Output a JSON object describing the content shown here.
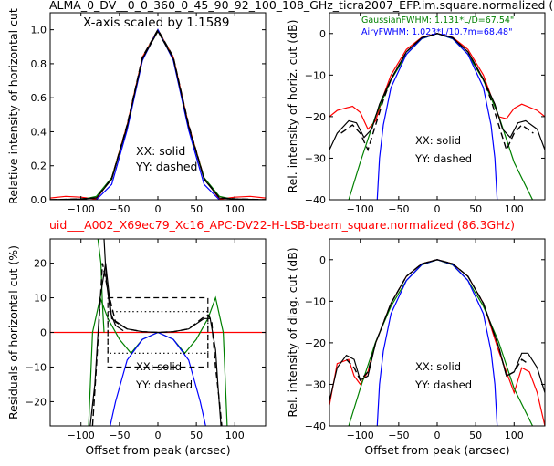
{
  "top_title": "ALMA_0_DV__0_0_360_0_45_90_92_100_108_GHz_ticra2007_EFP.im.square.normalized (",
  "mid_title": "uid___A002_X69ec79_Xc16_APC-DV22-H-LSB-beam_square.normalized (86.3GHz)",
  "colors": {
    "red": "#ff0000",
    "green": "#008000",
    "blue": "#0000ff",
    "black": "#000000"
  },
  "chart_data": [
    {
      "type": "line",
      "panel": "top-left",
      "xlim": [
        -140,
        140
      ],
      "ylim": [
        0,
        1.1
      ],
      "xticks": [
        -100,
        -50,
        0,
        50,
        100
      ],
      "yticks": [
        0.0,
        0.2,
        0.4,
        0.6,
        0.8,
        1.0
      ],
      "ytick_labels": [
        "0.0",
        "0.2",
        "0.4",
        "0.6",
        "0.8",
        "1.0"
      ],
      "xlabel": "",
      "ylabel": "Relative intensity of horizontal cut",
      "annotations": [
        "X-axis scaled by 1.1589",
        "XX: solid",
        "YY: dashed"
      ],
      "series": [
        {
          "color": "red",
          "style": "solid",
          "x": [
            -140,
            -120,
            -100,
            -80,
            -60,
            -40,
            -20,
            0,
            20,
            40,
            60,
            80,
            100,
            120,
            140
          ],
          "y": [
            0.01,
            0.02,
            0.015,
            0.004,
            0.13,
            0.44,
            0.84,
            1.0,
            0.84,
            0.44,
            0.13,
            0.004,
            0.015,
            0.02,
            0.01
          ]
        },
        {
          "color": "green",
          "style": "solid",
          "x": [
            -140,
            -100,
            -80,
            -60,
            -40,
            -20,
            0,
            20,
            40,
            60,
            80,
            100,
            140
          ],
          "y": [
            0.0,
            0.0,
            0.02,
            0.13,
            0.43,
            0.83,
            1.0,
            0.83,
            0.43,
            0.13,
            0.02,
            0.0,
            0.0
          ]
        },
        {
          "color": "blue",
          "style": "solid",
          "x": [
            -80,
            -60,
            -40,
            -20,
            0,
            20,
            40,
            60,
            80
          ],
          "y": [
            0.0,
            0.09,
            0.41,
            0.82,
            1.0,
            0.82,
            0.41,
            0.09,
            0.0
          ]
        },
        {
          "color": "black",
          "style": "solid",
          "x": [
            -140,
            -100,
            -80,
            -60,
            -40,
            -20,
            0,
            20,
            40,
            60,
            80,
            100,
            140
          ],
          "y": [
            0.0,
            0.005,
            0.01,
            0.12,
            0.43,
            0.83,
            0.99,
            0.83,
            0.43,
            0.12,
            0.01,
            0.005,
            0.0
          ]
        },
        {
          "color": "black",
          "style": "dashed",
          "x": [
            -140,
            -100,
            -80,
            -60,
            -40,
            -20,
            0,
            20,
            40,
            60,
            80,
            100,
            140
          ],
          "y": [
            0.0,
            0.005,
            0.012,
            0.125,
            0.44,
            0.84,
            1.0,
            0.84,
            0.44,
            0.125,
            0.012,
            0.005,
            0.0
          ]
        }
      ]
    },
    {
      "type": "line",
      "panel": "top-right",
      "xlim": [
        -140,
        140
      ],
      "ylim": [
        -40,
        5
      ],
      "xticks": [
        -100,
        -50,
        0,
        50,
        100
      ],
      "yticks": [
        -40,
        -30,
        -20,
        -10,
        0
      ],
      "ytick_labels": [
        "−40",
        "−30",
        "−20",
        "−10",
        "0"
      ],
      "xlabel": "",
      "ylabel": "Rel. intensity of horiz. cut (dB)",
      "annotations": [
        "XX: solid",
        "YY: dashed"
      ],
      "legend": [
        {
          "text": "GaussianFWHM: 1.131*L/D=67.54\"",
          "color": "green"
        },
        {
          "text": "AiryFWHM: 1.023*L/10.7m=68.48\"",
          "color": "blue"
        }
      ],
      "series": [
        {
          "color": "red",
          "style": "solid",
          "x": [
            -140,
            -130,
            -110,
            -100,
            -90,
            -80,
            -70,
            -60,
            -40,
            -20,
            0,
            20,
            40,
            60,
            70,
            80,
            90,
            100,
            110,
            130,
            140
          ],
          "y": [
            -20,
            -18.5,
            -17.5,
            -19,
            -23,
            -21,
            -15,
            -10,
            -3.8,
            -0.9,
            0,
            -0.9,
            -3.8,
            -10,
            -15,
            -20,
            -20.5,
            -18,
            -17,
            -18.5,
            -20
          ]
        },
        {
          "color": "green",
          "style": "solid",
          "x": [
            -115,
            -100,
            -80,
            -60,
            -40,
            -20,
            0,
            20,
            40,
            60,
            80,
            100,
            124
          ],
          "y": [
            -40,
            -31,
            -19.8,
            -11.2,
            -5,
            -1.25,
            0,
            -1.25,
            -5,
            -11.2,
            -19.8,
            -31,
            -40
          ]
        },
        {
          "color": "blue",
          "style": "solid",
          "x": [
            -78,
            -75,
            -70,
            -60,
            -40,
            -20,
            0,
            20,
            40,
            60,
            70,
            75,
            78
          ],
          "y": [
            -40,
            -30,
            -22,
            -13,
            -5,
            -1.2,
            0,
            -1.2,
            -5,
            -13,
            -22,
            -30,
            -40
          ]
        },
        {
          "color": "black",
          "style": "solid",
          "x": [
            -140,
            -130,
            -115,
            -105,
            -95,
            -85,
            -75,
            -60,
            -40,
            -20,
            0,
            20,
            40,
            60,
            75,
            85,
            95,
            105,
            115,
            130,
            140
          ],
          "y": [
            -28,
            -24,
            -21,
            -21.5,
            -25,
            -23,
            -17,
            -11,
            -4.4,
            -1,
            0,
            -1,
            -4.4,
            -11,
            -17,
            -23,
            -25,
            -21.5,
            -21,
            -23,
            -28
          ]
        },
        {
          "color": "black",
          "style": "dashed",
          "x": [
            -125,
            -110,
            -100,
            -90,
            -80,
            -70,
            -60,
            -40,
            -20,
            0,
            20,
            40,
            60,
            70,
            80,
            90,
            100,
            110,
            125
          ],
          "y": [
            -24,
            -22,
            -24,
            -28,
            -22,
            -16,
            -11,
            -4.4,
            -1,
            0,
            -1,
            -4.4,
            -11,
            -16,
            -22,
            -28,
            -24,
            -22,
            -24
          ]
        }
      ]
    },
    {
      "type": "line",
      "panel": "bottom-left",
      "xlim": [
        -140,
        140
      ],
      "ylim": [
        -27,
        27
      ],
      "xticks": [
        -100,
        -50,
        0,
        50,
        100
      ],
      "yticks": [
        -20,
        -10,
        0,
        10,
        20
      ],
      "ytick_labels": [
        "−20",
        "−10",
        "0",
        "10",
        "20"
      ],
      "xlabel": "Offset from peak (arcsec)",
      "ylabel": "Residuals of horizontal cut (%)",
      "annotations": [
        "XX: solid",
        "YY: dashed"
      ],
      "series": [
        {
          "color": "red",
          "style": "solid",
          "x": [
            -140,
            140
          ],
          "y": [
            0,
            0
          ]
        },
        {
          "color": "green",
          "style": "solid",
          "x": [
            -90,
            -85,
            -75,
            -65,
            -50,
            -35,
            -20,
            0,
            20,
            35,
            50,
            65,
            75,
            85,
            90
          ],
          "y": [
            -27,
            0,
            10,
            4,
            -2,
            -6,
            -2,
            0,
            -2,
            -6,
            -2,
            4,
            10,
            0,
            -27
          ]
        },
        {
          "color": "green",
          "style": "solid",
          "x": [
            -70,
            -72,
            -74,
            -78
          ],
          "y": [
            0,
            8,
            20,
            27
          ]
        },
        {
          "color": "blue",
          "style": "solid",
          "x": [
            -62,
            -55,
            -40,
            -20,
            0,
            20,
            40,
            55,
            62
          ],
          "y": [
            -27,
            -20,
            -8,
            -2,
            0,
            -2,
            -8,
            -20,
            -27
          ]
        },
        {
          "color": "black",
          "style": "solid",
          "x": [
            -88,
            -82,
            -75,
            -68,
            -60,
            -40,
            -20,
            0,
            20,
            40,
            60,
            68,
            75,
            78,
            82
          ],
          "y": [
            -27,
            -15,
            10,
            20,
            4,
            1,
            0.2,
            0,
            0.2,
            1,
            4,
            4,
            -5,
            -15,
            -27
          ]
        },
        {
          "color": "black",
          "style": "solid",
          "x": [
            -70,
            -67,
            -62,
            -55,
            -45
          ],
          "y": [
            27,
            15,
            6,
            2,
            0.5
          ]
        },
        {
          "color": "black",
          "style": "dashed",
          "x": [
            -85,
            -80,
            -72,
            -65,
            -55,
            -40,
            -20,
            0,
            20,
            40,
            60,
            66,
            70,
            75,
            80,
            83
          ],
          "y": [
            -27,
            -10,
            20,
            12,
            3,
            1,
            0.2,
            0,
            0.2,
            1,
            4.5,
            5,
            3,
            -10,
            -20,
            -27
          ]
        },
        {
          "color": "black",
          "style": "box-dashed",
          "x": [
            -65,
            65,
            65,
            -65,
            -65
          ],
          "y": [
            10,
            10,
            -10,
            -10,
            10
          ]
        },
        {
          "color": "black",
          "style": "box-dotted",
          "x": [
            -65,
            65,
            65,
            -65,
            -65
          ],
          "y": [
            6,
            6,
            -6,
            -6,
            6
          ]
        }
      ]
    },
    {
      "type": "line",
      "panel": "bottom-right",
      "xlim": [
        -140,
        140
      ],
      "ylim": [
        -40,
        5
      ],
      "xticks": [
        -100,
        -50,
        0,
        50,
        100
      ],
      "yticks": [
        -40,
        -30,
        -20,
        -10,
        0
      ],
      "ytick_labels": [
        "−40",
        "−30",
        "−20",
        "−10",
        "0"
      ],
      "xlabel": "Offset from peak (arcsec)",
      "ylabel": "Rel. intensity of diag. cut (dB)",
      "annotations": [
        "XX: solid",
        "YY: dashed"
      ],
      "series": [
        {
          "color": "red",
          "style": "solid",
          "x": [
            -140,
            -130,
            -115,
            -108,
            -100,
            -90,
            -80,
            -60,
            -40,
            -20,
            0,
            20,
            40,
            60,
            80,
            90,
            100,
            110,
            120,
            130,
            140
          ],
          "y": [
            -35,
            -25,
            -24,
            -28,
            -30,
            -27,
            -20,
            -10.5,
            -4,
            -1,
            0,
            -1,
            -4,
            -10.5,
            -22,
            -27,
            -32,
            -26,
            -27,
            -32,
            -40
          ]
        },
        {
          "color": "green",
          "style": "solid",
          "x": [
            -115,
            -100,
            -80,
            -60,
            -40,
            -20,
            0,
            20,
            40,
            60,
            80,
            100,
            124
          ],
          "y": [
            -40,
            -31,
            -19.8,
            -11.2,
            -5,
            -1.25,
            0,
            -1.25,
            -5,
            -11.2,
            -19.8,
            -31,
            -40
          ]
        },
        {
          "color": "blue",
          "style": "solid",
          "x": [
            -78,
            -75,
            -70,
            -60,
            -40,
            -20,
            0,
            20,
            40,
            60,
            70,
            75,
            78
          ],
          "y": [
            -40,
            -30,
            -22,
            -13,
            -5,
            -1.2,
            0,
            -1.2,
            -5,
            -13,
            -22,
            -30,
            -40
          ]
        },
        {
          "color": "black",
          "style": "solid",
          "x": [
            -140,
            -130,
            -118,
            -108,
            -100,
            -90,
            -80,
            -60,
            -40,
            -20,
            0,
            20,
            40,
            60,
            80,
            90,
            100,
            110,
            118,
            130,
            140
          ],
          "y": [
            -34,
            -26,
            -23,
            -24,
            -29,
            -28,
            -20,
            -10.5,
            -4,
            -1,
            0,
            -1,
            -4,
            -10.5,
            -21,
            -28,
            -27,
            -22.5,
            -22.5,
            -26,
            -32
          ]
        },
        {
          "color": "black",
          "style": "dashed",
          "x": [
            -118,
            -108,
            -100,
            -90,
            -80,
            -60,
            -40,
            -20,
            0,
            20,
            40,
            60,
            80,
            90,
            100,
            110,
            118
          ],
          "y": [
            -24,
            -26,
            -29,
            -27,
            -20,
            -10.5,
            -4,
            -1,
            0,
            -1,
            -4,
            -10.5,
            -21,
            -28,
            -27,
            -24,
            -25
          ]
        }
      ]
    }
  ]
}
